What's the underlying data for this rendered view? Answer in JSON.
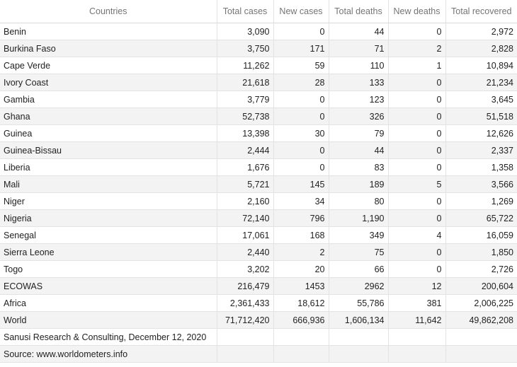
{
  "table": {
    "headers": [
      "Countries",
      "Total cases",
      "New cases",
      "Total deaths",
      "New deaths",
      "Total recovered"
    ],
    "rows": [
      [
        "Benin",
        "3,090",
        "0",
        "44",
        "0",
        "2,972"
      ],
      [
        "Burkina Faso",
        "3,750",
        "171",
        "71",
        "2",
        "2,828"
      ],
      [
        "Cape Verde",
        "11,262",
        "59",
        "110",
        "1",
        "10,894"
      ],
      [
        "Ivory Coast",
        "21,618",
        "28",
        "133",
        "0",
        "21,234"
      ],
      [
        "Gambia",
        "3,779",
        "0",
        "123",
        "0",
        "3,645"
      ],
      [
        "Ghana",
        "52,738",
        "0",
        "326",
        "0",
        "51,518"
      ],
      [
        "Guinea",
        "13,398",
        "30",
        "79",
        "0",
        "12,626"
      ],
      [
        "Guinea-Bissau",
        "2,444",
        "0",
        "44",
        "0",
        "2,337"
      ],
      [
        "Liberia",
        "1,676",
        "0",
        "83",
        "0",
        "1,358"
      ],
      [
        "Mali",
        "5,721",
        "145",
        "189",
        "5",
        "3,566"
      ],
      [
        "Niger",
        "2,160",
        "34",
        "80",
        "0",
        "1,269"
      ],
      [
        "Nigeria",
        "72,140",
        "796",
        "1,190",
        "0",
        "65,722"
      ],
      [
        "Senegal",
        "17,061",
        "168",
        "349",
        "4",
        "16,059"
      ],
      [
        "Sierra Leone",
        "2,440",
        "2",
        "75",
        "0",
        "1,850"
      ],
      [
        "Togo",
        "3,202",
        "20",
        "66",
        "0",
        "2,726"
      ],
      [
        "ECOWAS",
        "216,479",
        "1453",
        "2962",
        "12",
        "200,604"
      ],
      [
        "Africa",
        "2,361,433",
        "18,612",
        "55,786",
        "381",
        "2,006,225"
      ],
      [
        "World",
        "71,712,420",
        "666,936",
        "1,606,134",
        "11,642",
        "49,862,208"
      ],
      [
        "Sanusi Research & Consulting, December 12, 2020",
        "",
        "",
        "",
        "",
        ""
      ],
      [
        "Source: www.worldometers.info",
        "",
        "",
        "",
        "",
        ""
      ]
    ]
  }
}
